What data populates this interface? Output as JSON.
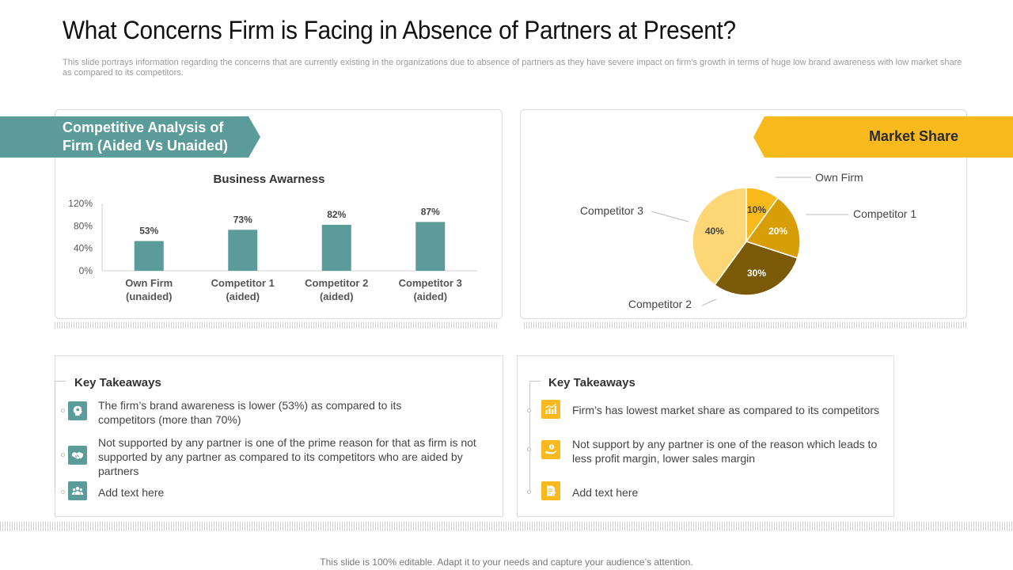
{
  "title": "What Concerns Firm is Facing in Absence of Partners at Present?",
  "subtitle": "This slide portrays information regarding the concerns that are currently existing in the organizations due to absence of partners as they have severe impact on firm’s growth in terms of huge low brand awareness with low market share as compared to its competitors.",
  "left_panel": {
    "banner_line1": "Competitive Analysis of",
    "banner_line2": "Firm (Aided Vs Unaided)"
  },
  "right_panel": {
    "banner": "Market Share"
  },
  "colors": {
    "teal": "#5b9c9a",
    "gold": "#f7b91c"
  },
  "chart_data": [
    {
      "type": "bar",
      "title": "Business Awarness",
      "categories": [
        [
          "Own Firm",
          "(unaided)"
        ],
        [
          "Competitor 1",
          "(aided)"
        ],
        [
          "Competitor 2",
          "(aided)"
        ],
        [
          "Competitor 3",
          "(aided)"
        ]
      ],
      "values": [
        53,
        73,
        82,
        87
      ],
      "data_labels": [
        "53%",
        "73%",
        "82%",
        "87%"
      ],
      "yticks": [
        "0%",
        "40%",
        "80%",
        "120%"
      ],
      "ylim": [
        0,
        120
      ],
      "color": "#5b9c9a"
    },
    {
      "type": "pie",
      "slices": [
        {
          "label": "Own Firm",
          "value": 10,
          "display": "10%",
          "color": "#f7b91c"
        },
        {
          "label": "Competitor 1",
          "value": 20,
          "display": "20%",
          "color": "#d89e07"
        },
        {
          "label": "Competitor 2",
          "value": 30,
          "display": "30%",
          "color": "#7a5a06"
        },
        {
          "label": "Competitor 3",
          "value": 40,
          "display": "40%",
          "color": "#fdd775"
        }
      ]
    }
  ],
  "takeaways_left": {
    "title": "Key Takeaways",
    "items": [
      {
        "icon": "head-idea-icon",
        "text": "The firm’s brand awareness is lower (53%) as compared to its competitors (more than 70%)"
      },
      {
        "icon": "handshake-icon",
        "text": "Not supported by any partner is one of the prime reason for that as firm is not supported by any partner as compared to its competitors who are aided by partners"
      },
      {
        "icon": "users-icon",
        "text": "Add text here"
      }
    ]
  },
  "takeaways_right": {
    "title": "Key Takeaways",
    "items": [
      {
        "icon": "market-chart-icon",
        "text": "Firm’s has lowest market share as compared to its competitors"
      },
      {
        "icon": "hand-money-icon",
        "text": "Not support by any partner is one of the reason which leads to less profit margin, lower sales margin"
      },
      {
        "icon": "document-edit-icon",
        "text": "Add text here"
      }
    ]
  },
  "footer": "This slide is 100% editable. Adapt it to your needs and capture your audience’s attention."
}
